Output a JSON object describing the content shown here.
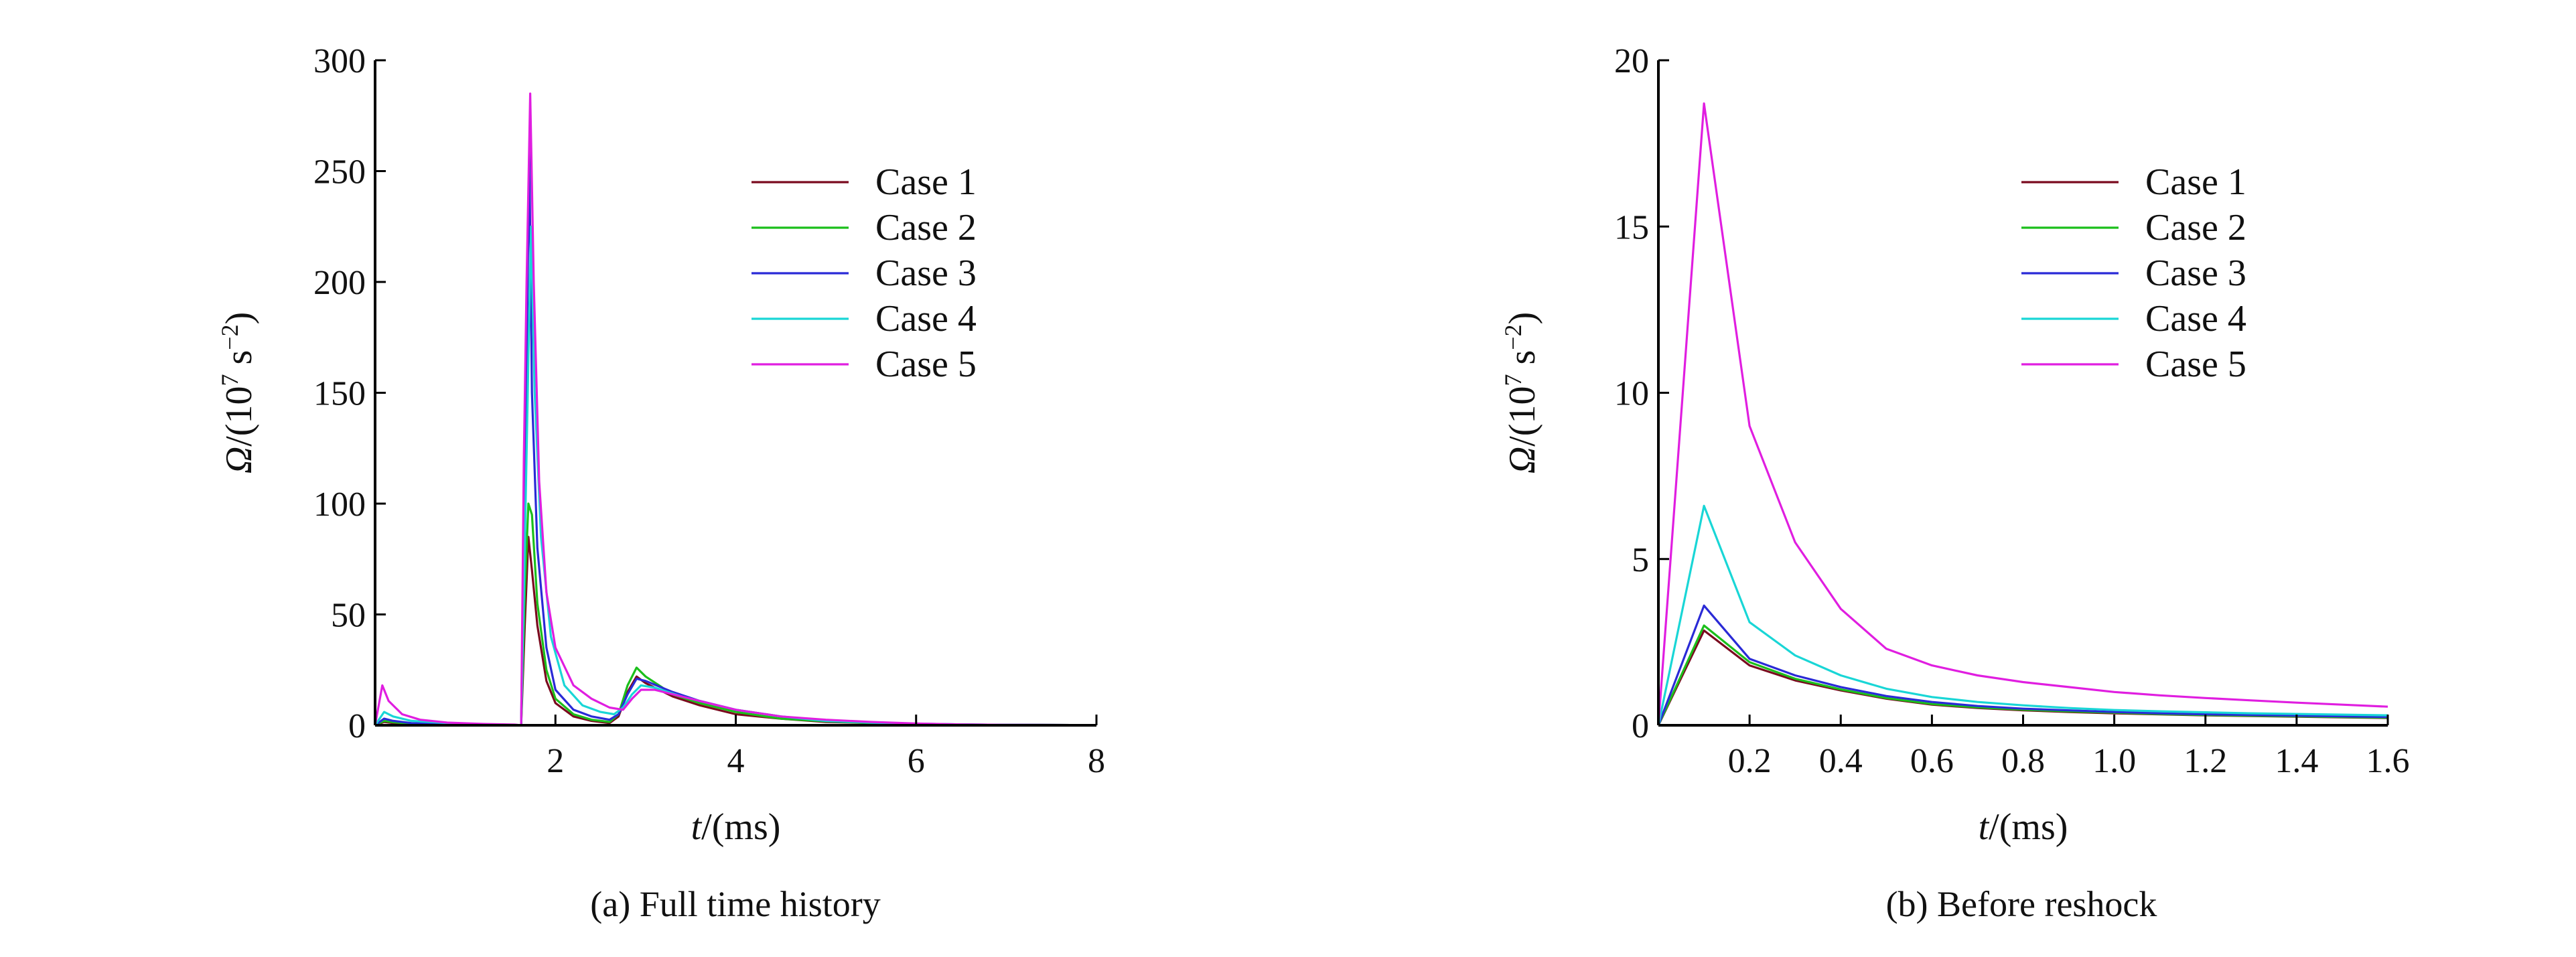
{
  "chart_data": [
    {
      "type": "line",
      "caption": "(a) Full time history",
      "xlabel_var": "t",
      "xlabel_unit": "/(ms)",
      "ylabel_var": "Ω",
      "ylabel_unit": "/(10",
      "ylabel_exp": "7",
      "ylabel_unit2": " s",
      "ylabel_exp2": "−2",
      "ylabel_close": ")",
      "xlim": [
        0,
        8
      ],
      "ylim": [
        0,
        300
      ],
      "x_ticks": [
        2,
        4,
        6,
        8
      ],
      "x_tick_labels": [
        "2",
        "4",
        "6",
        "8"
      ],
      "y_ticks": [
        0,
        50,
        100,
        150,
        200,
        250,
        300
      ],
      "y_tick_labels": [
        "0",
        "50",
        "100",
        "150",
        "200",
        "250",
        "300"
      ],
      "legend_position": "top-right",
      "series": [
        {
          "name": "Case 1",
          "color": "#7a0a1e",
          "points": [
            [
              0,
              0
            ],
            [
              0.1,
              1.5
            ],
            [
              0.2,
              1.0
            ],
            [
              0.4,
              0.5
            ],
            [
              0.8,
              0.3
            ],
            [
              1.2,
              0.2
            ],
            [
              1.55,
              0.1
            ],
            [
              1.62,
              0
            ],
            [
              1.66,
              45
            ],
            [
              1.7,
              85
            ],
            [
              1.74,
              70
            ],
            [
              1.8,
              45
            ],
            [
              1.9,
              20
            ],
            [
              2.0,
              10
            ],
            [
              2.2,
              4
            ],
            [
              2.4,
              2
            ],
            [
              2.6,
              1
            ],
            [
              2.7,
              4
            ],
            [
              2.8,
              15
            ],
            [
              2.9,
              22
            ],
            [
              3.0,
              19
            ],
            [
              3.3,
              13
            ],
            [
              3.6,
              9
            ],
            [
              4.0,
              5
            ],
            [
              4.5,
              3
            ],
            [
              5.0,
              1.5
            ],
            [
              5.5,
              1
            ],
            [
              6.0,
              0.6
            ],
            [
              6.5,
              0.3
            ],
            [
              7.0,
              0.2
            ],
            [
              8.0,
              0.1
            ]
          ]
        },
        {
          "name": "Case 2",
          "color": "#1bbf1b",
          "points": [
            [
              0,
              0
            ],
            [
              0.1,
              2
            ],
            [
              0.2,
              1.4
            ],
            [
              0.4,
              0.7
            ],
            [
              0.8,
              0.4
            ],
            [
              1.2,
              0.2
            ],
            [
              1.55,
              0.1
            ],
            [
              1.62,
              0
            ],
            [
              1.66,
              60
            ],
            [
              1.7,
              100
            ],
            [
              1.74,
              95
            ],
            [
              1.8,
              55
            ],
            [
              1.9,
              25
            ],
            [
              2.0,
              12
            ],
            [
              2.2,
              5
            ],
            [
              2.4,
              2.5
            ],
            [
              2.6,
              1.5
            ],
            [
              2.7,
              5
            ],
            [
              2.8,
              18
            ],
            [
              2.9,
              26
            ],
            [
              3.0,
              22
            ],
            [
              3.3,
              14
            ],
            [
              3.6,
              10
            ],
            [
              4.0,
              6
            ],
            [
              4.5,
              3
            ],
            [
              5.0,
              1.8
            ],
            [
              5.5,
              1
            ],
            [
              6.0,
              0.6
            ],
            [
              6.5,
              0.3
            ],
            [
              7.0,
              0.2
            ],
            [
              8.0,
              0.1
            ]
          ]
        },
        {
          "name": "Case 3",
          "color": "#2a2ad6",
          "points": [
            [
              0,
              0
            ],
            [
              0.1,
              3
            ],
            [
              0.2,
              2
            ],
            [
              0.4,
              1
            ],
            [
              0.8,
              0.5
            ],
            [
              1.2,
              0.3
            ],
            [
              1.55,
              0.1
            ],
            [
              1.62,
              0
            ],
            [
              1.65,
              90
            ],
            [
              1.68,
              160
            ],
            [
              1.71,
              260
            ],
            [
              1.74,
              150
            ],
            [
              1.8,
              80
            ],
            [
              1.9,
              35
            ],
            [
              2.0,
              16
            ],
            [
              2.2,
              7
            ],
            [
              2.4,
              4
            ],
            [
              2.6,
              2.5
            ],
            [
              2.7,
              5
            ],
            [
              2.8,
              14
            ],
            [
              2.9,
              21
            ],
            [
              3.0,
              20
            ],
            [
              3.3,
              15
            ],
            [
              3.6,
              11
            ],
            [
              4.0,
              7
            ],
            [
              4.5,
              4
            ],
            [
              5.0,
              2
            ],
            [
              5.5,
              1.2
            ],
            [
              6.0,
              0.7
            ],
            [
              6.5,
              0.4
            ],
            [
              7.0,
              0.2
            ],
            [
              8.0,
              0.1
            ]
          ]
        },
        {
          "name": "Case 4",
          "color": "#19d6d6",
          "points": [
            [
              0,
              0
            ],
            [
              0.1,
              6
            ],
            [
              0.2,
              4
            ],
            [
              0.4,
              2
            ],
            [
              0.8,
              1
            ],
            [
              1.2,
              0.5
            ],
            [
              1.55,
              0.2
            ],
            [
              1.62,
              0
            ],
            [
              1.66,
              80
            ],
            [
              1.7,
              165
            ],
            [
              1.73,
              225
            ],
            [
              1.77,
              150
            ],
            [
              1.84,
              85
            ],
            [
              1.95,
              40
            ],
            [
              2.1,
              18
            ],
            [
              2.3,
              9
            ],
            [
              2.5,
              6
            ],
            [
              2.65,
              5
            ],
            [
              2.75,
              8
            ],
            [
              2.85,
              14
            ],
            [
              2.95,
              18
            ],
            [
              3.1,
              17
            ],
            [
              3.4,
              13
            ],
            [
              3.7,
              10
            ],
            [
              4.0,
              7
            ],
            [
              4.5,
              4
            ],
            [
              5.0,
              2
            ],
            [
              5.5,
              1.2
            ],
            [
              6.0,
              0.7
            ],
            [
              6.5,
              0.4
            ],
            [
              7.0,
              0.2
            ],
            [
              8.0,
              0.1
            ]
          ]
        },
        {
          "name": "Case 5",
          "color": "#e01ee0",
          "points": [
            [
              0,
              0
            ],
            [
              0.08,
              18
            ],
            [
              0.15,
              11
            ],
            [
              0.3,
              5
            ],
            [
              0.5,
              2.5
            ],
            [
              0.8,
              1.2
            ],
            [
              1.2,
              0.6
            ],
            [
              1.55,
              0.3
            ],
            [
              1.62,
              0
            ],
            [
              1.65,
              120
            ],
            [
              1.68,
              200
            ],
            [
              1.72,
              285
            ],
            [
              1.76,
              200
            ],
            [
              1.82,
              110
            ],
            [
              1.9,
              60
            ],
            [
              2.0,
              35
            ],
            [
              2.2,
              18
            ],
            [
              2.4,
              12
            ],
            [
              2.6,
              8
            ],
            [
              2.75,
              7
            ],
            [
              2.85,
              12
            ],
            [
              2.95,
              16
            ],
            [
              3.1,
              16
            ],
            [
              3.4,
              13
            ],
            [
              3.7,
              10
            ],
            [
              4.0,
              7
            ],
            [
              4.5,
              4
            ],
            [
              5.0,
              2.5
            ],
            [
              5.5,
              1.5
            ],
            [
              6.0,
              0.8
            ],
            [
              6.5,
              0.4
            ],
            [
              7.0,
              0.2
            ],
            [
              8.0,
              0.1
            ]
          ]
        }
      ]
    },
    {
      "type": "line",
      "caption": "(b) Before reshock",
      "xlabel_var": "t",
      "xlabel_unit": "/(ms)",
      "ylabel_var": "Ω",
      "ylabel_unit": "/(10",
      "ylabel_exp": "7",
      "ylabel_unit2": " s",
      "ylabel_exp2": "−2",
      "ylabel_close": ")",
      "xlim": [
        0,
        1.6
      ],
      "ylim": [
        0,
        20
      ],
      "x_ticks": [
        0.2,
        0.4,
        0.6,
        0.8,
        1.0,
        1.2,
        1.4,
        1.6
      ],
      "x_tick_labels": [
        "0.2",
        "0.4",
        "0.6",
        "0.8",
        "1.0",
        "1.2",
        "1.4",
        "1.6"
      ],
      "y_ticks": [
        0,
        5,
        10,
        15,
        20
      ],
      "y_tick_labels": [
        "0",
        "5",
        "10",
        "15",
        "20"
      ],
      "legend_position": "top-right",
      "series": [
        {
          "name": "Case 1",
          "color": "#7a0a1e",
          "points": [
            [
              0,
              0
            ],
            [
              0.1,
              2.85
            ],
            [
              0.2,
              1.8
            ],
            [
              0.3,
              1.35
            ],
            [
              0.4,
              1.05
            ],
            [
              0.5,
              0.8
            ],
            [
              0.6,
              0.62
            ],
            [
              0.7,
              0.52
            ],
            [
              0.8,
              0.45
            ],
            [
              0.9,
              0.4
            ],
            [
              1.0,
              0.36
            ],
            [
              1.1,
              0.33
            ],
            [
              1.2,
              0.3
            ],
            [
              1.3,
              0.28
            ],
            [
              1.4,
              0.26
            ],
            [
              1.5,
              0.24
            ],
            [
              1.6,
              0.22
            ]
          ]
        },
        {
          "name": "Case 2",
          "color": "#1bbf1b",
          "points": [
            [
              0,
              0
            ],
            [
              0.1,
              3.0
            ],
            [
              0.2,
              1.9
            ],
            [
              0.3,
              1.4
            ],
            [
              0.4,
              1.08
            ],
            [
              0.5,
              0.82
            ],
            [
              0.6,
              0.64
            ],
            [
              0.7,
              0.54
            ],
            [
              0.8,
              0.47
            ],
            [
              0.9,
              0.42
            ],
            [
              1.0,
              0.38
            ],
            [
              1.1,
              0.34
            ],
            [
              1.2,
              0.31
            ],
            [
              1.3,
              0.29
            ],
            [
              1.4,
              0.27
            ],
            [
              1.5,
              0.25
            ],
            [
              1.6,
              0.23
            ]
          ]
        },
        {
          "name": "Case 3",
          "color": "#2a2ad6",
          "points": [
            [
              0,
              0
            ],
            [
              0.1,
              3.6
            ],
            [
              0.2,
              2.0
            ],
            [
              0.3,
              1.5
            ],
            [
              0.4,
              1.15
            ],
            [
              0.5,
              0.88
            ],
            [
              0.6,
              0.7
            ],
            [
              0.7,
              0.58
            ],
            [
              0.8,
              0.5
            ],
            [
              0.9,
              0.45
            ],
            [
              1.0,
              0.4
            ],
            [
              1.1,
              0.36
            ],
            [
              1.2,
              0.33
            ],
            [
              1.3,
              0.31
            ],
            [
              1.4,
              0.29
            ],
            [
              1.5,
              0.27
            ],
            [
              1.6,
              0.25
            ]
          ]
        },
        {
          "name": "Case 4",
          "color": "#19d6d6",
          "points": [
            [
              0,
              0
            ],
            [
              0.1,
              6.6
            ],
            [
              0.2,
              3.1
            ],
            [
              0.3,
              2.1
            ],
            [
              0.4,
              1.5
            ],
            [
              0.5,
              1.1
            ],
            [
              0.6,
              0.85
            ],
            [
              0.7,
              0.7
            ],
            [
              0.8,
              0.6
            ],
            [
              0.9,
              0.52
            ],
            [
              1.0,
              0.46
            ],
            [
              1.1,
              0.42
            ],
            [
              1.2,
              0.39
            ],
            [
              1.3,
              0.36
            ],
            [
              1.4,
              0.34
            ],
            [
              1.5,
              0.32
            ],
            [
              1.6,
              0.3
            ]
          ]
        },
        {
          "name": "Case 5",
          "color": "#e01ee0",
          "points": [
            [
              0,
              0
            ],
            [
              0.1,
              18.7
            ],
            [
              0.2,
              9.0
            ],
            [
              0.3,
              5.5
            ],
            [
              0.4,
              3.5
            ],
            [
              0.5,
              2.3
            ],
            [
              0.6,
              1.8
            ],
            [
              0.7,
              1.5
            ],
            [
              0.8,
              1.3
            ],
            [
              0.9,
              1.15
            ],
            [
              1.0,
              1.0
            ],
            [
              1.1,
              0.9
            ],
            [
              1.2,
              0.82
            ],
            [
              1.3,
              0.75
            ],
            [
              1.4,
              0.68
            ],
            [
              1.5,
              0.62
            ],
            [
              1.6,
              0.56
            ]
          ]
        }
      ]
    }
  ]
}
